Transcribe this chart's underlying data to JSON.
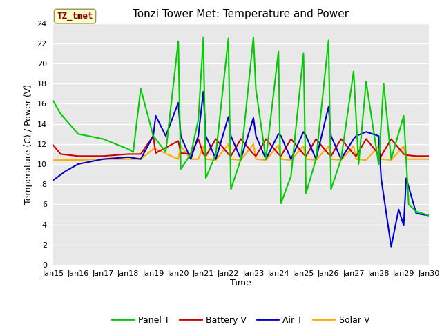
{
  "title": "Tonzi Tower Met: Temperature and Power",
  "xlabel": "Time",
  "ylabel": "Temperature (C) / Power (V)",
  "ylim": [
    0,
    24
  ],
  "yticks": [
    0,
    2,
    4,
    6,
    8,
    10,
    12,
    14,
    16,
    18,
    20,
    22,
    24
  ],
  "xtick_labels": [
    "Jan 15",
    "Jan 16",
    "Jan 17",
    "Jan 18",
    "Jan 19",
    "Jan 20",
    "Jan 21",
    "Jan 22",
    "Jan 23",
    "Jan 24",
    "Jan 25",
    "Jan 26",
    "Jan 27",
    "Jan 28",
    "Jan 29",
    "Jan 30"
  ],
  "bg_color": "#e8e8e8",
  "fig_bg_color": "#ffffff",
  "grid_color": "#ffffff",
  "annotation_text": "TZ_tmet",
  "annotation_bg": "#ffffcc",
  "annotation_fg": "#8b0000",
  "series": {
    "Panel T": {
      "color": "#00cc00",
      "x": [
        0,
        0.3,
        1.0,
        2.0,
        3.0,
        3.2,
        3.5,
        4.0,
        4.1,
        4.5,
        5.0,
        5.1,
        5.5,
        5.8,
        6.0,
        6.1,
        6.5,
        7.0,
        7.1,
        7.5,
        8.0,
        8.1,
        8.5,
        9.0,
        9.1,
        9.5,
        10.0,
        10.1,
        10.5,
        11.0,
        11.1,
        11.5,
        12.0,
        12.2,
        12.5,
        13.0,
        13.2,
        13.5,
        14.0,
        14.2,
        14.5,
        15.0
      ],
      "y": [
        16.3,
        15.0,
        13.0,
        12.5,
        11.5,
        11.2,
        17.5,
        12.8,
        12.5,
        11.2,
        22.2,
        9.5,
        11.0,
        14.4,
        22.6,
        8.6,
        11.0,
        22.5,
        7.5,
        10.5,
        22.6,
        17.4,
        10.5,
        21.2,
        6.1,
        8.8,
        21.0,
        7.1,
        10.5,
        22.3,
        7.5,
        10.5,
        19.2,
        10.0,
        18.2,
        10.0,
        18.0,
        10.5,
        14.8,
        6.0,
        5.3,
        4.9
      ]
    },
    "Battery V": {
      "color": "#cc0000",
      "x": [
        0,
        0.3,
        1.0,
        2.0,
        3.0,
        3.5,
        4.0,
        4.1,
        5.0,
        5.1,
        5.5,
        5.8,
        6.0,
        6.1,
        6.5,
        7.0,
        7.1,
        7.5,
        8.0,
        8.1,
        8.5,
        9.0,
        9.1,
        9.5,
        10.0,
        10.1,
        10.5,
        11.0,
        11.1,
        11.5,
        12.0,
        12.1,
        12.5,
        13.0,
        13.1,
        13.5,
        14.0,
        14.1,
        14.5,
        15.0
      ],
      "y": [
        11.9,
        11.0,
        10.8,
        10.8,
        11.0,
        11.0,
        12.8,
        11.1,
        12.3,
        11.1,
        11.0,
        12.5,
        11.0,
        10.8,
        12.5,
        11.0,
        10.8,
        12.5,
        11.0,
        10.8,
        12.5,
        11.0,
        10.8,
        12.5,
        11.0,
        10.8,
        12.5,
        11.0,
        10.8,
        12.5,
        11.0,
        10.8,
        12.5,
        11.0,
        10.8,
        12.5,
        11.0,
        10.9,
        10.8,
        10.8
      ]
    },
    "Air T": {
      "color": "#0000cc",
      "x": [
        0,
        0.5,
        1.0,
        2.0,
        3.0,
        3.5,
        4.0,
        4.1,
        4.5,
        5.0,
        5.1,
        5.5,
        5.8,
        6.0,
        6.1,
        6.5,
        7.0,
        7.1,
        7.5,
        8.0,
        8.1,
        8.5,
        9.0,
        9.1,
        9.5,
        10.0,
        10.1,
        10.5,
        11.0,
        11.1,
        11.5,
        12.0,
        12.1,
        12.5,
        13.0,
        13.1,
        13.5,
        13.8,
        14.0,
        14.1,
        14.5,
        15.0
      ],
      "y": [
        8.4,
        9.3,
        10.0,
        10.5,
        10.7,
        10.5,
        12.8,
        14.8,
        12.8,
        16.1,
        12.8,
        10.5,
        12.8,
        17.2,
        12.8,
        10.5,
        14.7,
        12.8,
        10.5,
        14.6,
        12.8,
        10.5,
        13.0,
        12.8,
        10.5,
        13.2,
        12.8,
        10.5,
        15.7,
        12.8,
        10.5,
        12.5,
        12.8,
        13.2,
        12.8,
        8.6,
        1.8,
        5.5,
        3.9,
        8.6,
        5.1,
        4.9
      ]
    },
    "Solar V": {
      "color": "#ffaa00",
      "x": [
        0,
        0.5,
        1.0,
        2.0,
        3.0,
        3.5,
        4.0,
        4.1,
        5.0,
        5.1,
        5.5,
        5.8,
        6.0,
        6.1,
        6.5,
        7.0,
        7.1,
        7.5,
        8.0,
        8.1,
        8.5,
        9.0,
        9.1,
        9.5,
        10.0,
        10.1,
        10.5,
        11.0,
        11.1,
        11.5,
        12.0,
        12.1,
        12.5,
        13.0,
        13.1,
        13.5,
        14.0,
        14.1,
        14.5,
        15.0
      ],
      "y": [
        10.4,
        10.4,
        10.4,
        10.5,
        10.5,
        10.5,
        11.5,
        11.5,
        10.5,
        11.8,
        10.5,
        10.5,
        11.8,
        10.5,
        10.4,
        12.0,
        10.5,
        10.4,
        12.0,
        10.5,
        10.4,
        11.9,
        10.5,
        10.4,
        11.8,
        10.5,
        10.4,
        11.8,
        10.5,
        10.4,
        11.8,
        10.5,
        10.4,
        11.8,
        10.5,
        10.4,
        11.8,
        10.5,
        10.5,
        10.5
      ]
    }
  }
}
